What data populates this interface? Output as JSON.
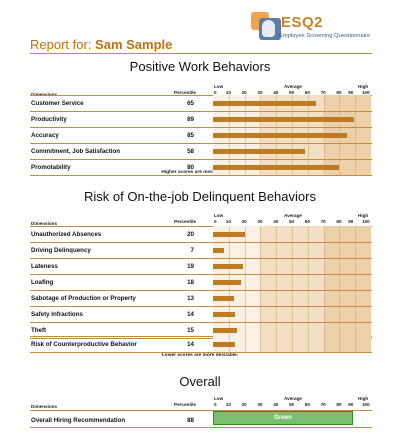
{
  "logo": {
    "title": "ESQ2",
    "subtitle": "Employee Screening Questionnaire"
  },
  "report": {
    "label": "Report for:",
    "name": "Sam Sample"
  },
  "scale": {
    "low": "Low",
    "average": "Average",
    "high": "High",
    "ticks": [
      "0",
      "10",
      "20",
      "30",
      "40",
      "50",
      "60",
      "70",
      "80",
      "90",
      "100"
    ]
  },
  "sections": [
    {
      "title": "Positive Work Behaviors",
      "dimensions_label": "Dimensions",
      "percentile_label": "Percentile",
      "rows": [
        {
          "name": "Customer Service",
          "value": 65
        },
        {
          "name": "Productivity",
          "value": 89
        },
        {
          "name": "Accuracy",
          "value": 85
        },
        {
          "name": "Commitment, Job Satisfaction",
          "value": 58
        },
        {
          "name": "Promotability",
          "value": 80
        }
      ],
      "note": "Higher scores are more desirable."
    },
    {
      "title": "Risk of On-the-job Delinquent Behaviors",
      "dimensions_label": "Dimensions",
      "percentile_label": "Percentile",
      "rows": [
        {
          "name": "Unauthorized Absences",
          "value": 20
        },
        {
          "name": "Driving Delinquency",
          "value": 7
        },
        {
          "name": "Lateness",
          "value": 19
        },
        {
          "name": "Loafing",
          "value": 18
        },
        {
          "name": "Sabotage of Production or Property",
          "value": 13
        },
        {
          "name": "Safety Infractions",
          "value": 14
        },
        {
          "name": "Theft",
          "value": 15
        }
      ],
      "summary_row": {
        "name": "Risk of Counterproductive Behavior",
        "value": 14
      },
      "note": "Lower scores are more desirable."
    },
    {
      "title": "Overall",
      "dimensions_label": "Dimensions",
      "percentile_label": "Percentile",
      "rows": [
        {
          "name": "Overall Hiring Recommendation",
          "value": 88,
          "rating": "Green"
        }
      ]
    }
  ],
  "colors": {
    "accent": "#c06f12",
    "bar": "#bf7b22",
    "band_light": "#faf0e3",
    "band_mid": "#f3dfc4",
    "band_dark": "#ecd0a9",
    "rating_green": "#76c06e"
  }
}
